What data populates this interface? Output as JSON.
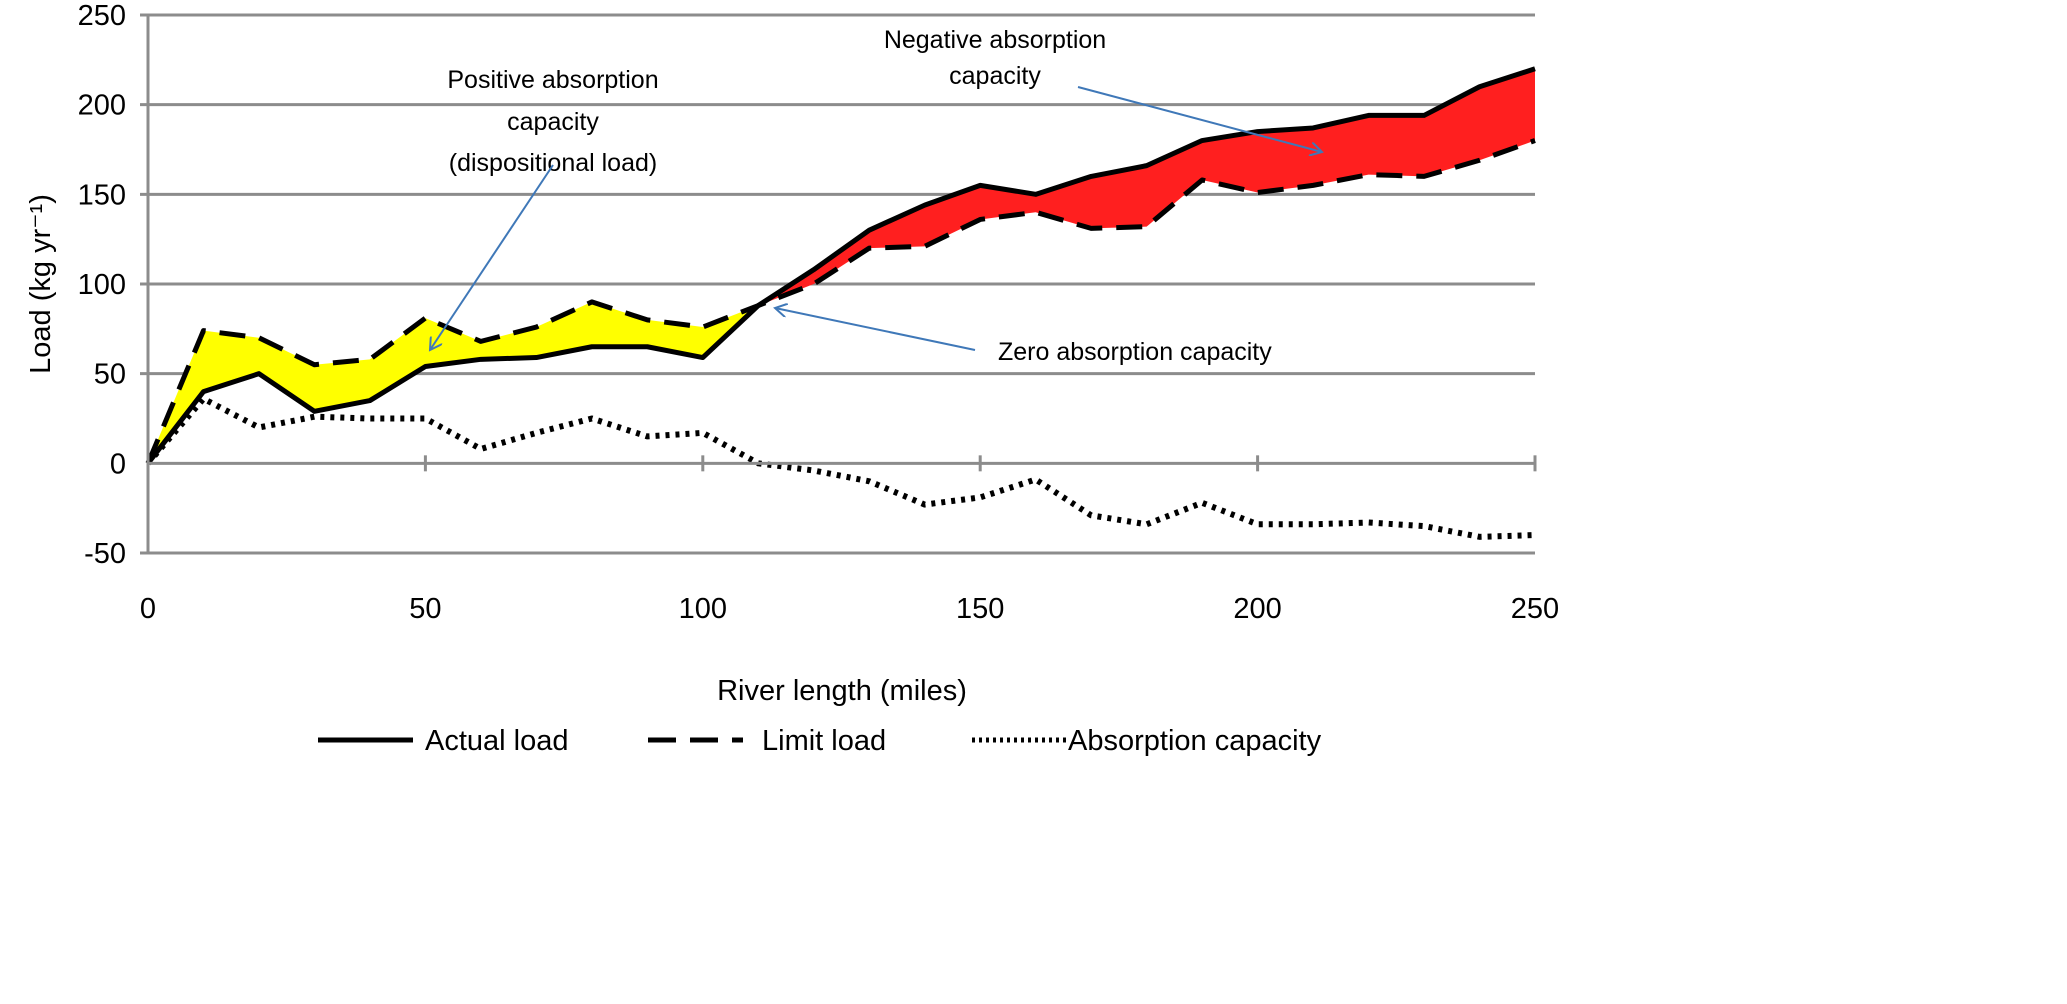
{
  "chart_data": {
    "type": "line",
    "title": "",
    "xlabel": "River length (miles)",
    "ylabel": "Load (kg yr⁻¹)",
    "xlim": [
      0,
      250
    ],
    "ylim": [
      -50,
      250
    ],
    "grid": true,
    "x_ticks": [
      "0",
      "50",
      "100",
      "150",
      "200",
      "250"
    ],
    "y_ticks": [
      "-50",
      "0",
      "50",
      "100",
      "150",
      "200",
      "250"
    ],
    "x_tick_values": [
      0,
      50,
      100,
      150,
      200,
      250
    ],
    "y_tick_values": [
      -50,
      0,
      50,
      100,
      150,
      200,
      250
    ],
    "x": [
      0,
      10,
      20,
      30,
      40,
      50,
      60,
      70,
      80,
      90,
      100,
      110,
      120,
      130,
      140,
      150,
      160,
      170,
      180,
      190,
      200,
      210,
      220,
      230,
      240,
      250
    ],
    "series": [
      {
        "name": "Actual load",
        "style": "solid",
        "values": [
          0,
          40,
          50,
          29,
          35,
          54,
          58,
          59,
          65,
          65,
          59,
          88,
          108,
          130,
          144,
          155,
          150,
          160,
          166,
          180,
          185,
          187,
          194,
          194,
          210,
          220
        ]
      },
      {
        "name": "Limit load",
        "style": "dashed",
        "values": [
          0,
          74,
          70,
          55,
          58,
          81,
          68,
          76,
          90,
          80,
          76,
          88,
          100,
          120,
          121,
          136,
          140,
          131,
          132,
          158,
          151,
          155,
          161,
          160,
          169,
          180
        ]
      },
      {
        "name": "Absorption capacity",
        "style": "dotted",
        "values": [
          0,
          36,
          20,
          26,
          25,
          25,
          8,
          17,
          25,
          15,
          17,
          0,
          -4,
          -10,
          -23,
          -19,
          -9,
          -29,
          -34,
          -22,
          -34,
          -34,
          -33,
          -35,
          -41,
          -40
        ]
      }
    ],
    "fills": [
      {
        "name": "Positive absorption capacity",
        "color": "#ffff00",
        "range": [
          0,
          110
        ]
      },
      {
        "name": "Negative absorption capacity",
        "color": "#ff1f1f",
        "range": [
          110,
          250
        ]
      }
    ],
    "annotations": [
      {
        "lines": [
          "Positive absorption",
          "capacity",
          "(dispositional load)"
        ]
      },
      {
        "lines": [
          "Negative absorption",
          "capacity"
        ]
      },
      {
        "lines": [
          "Zero absorption capacity"
        ]
      }
    ],
    "legend_position": "bottom",
    "arrow_color": "#3f78b8"
  }
}
